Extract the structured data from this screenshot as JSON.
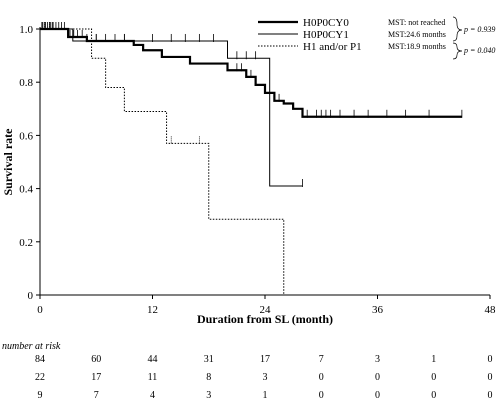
{
  "chart_data": {
    "type": "line",
    "title": "",
    "xlabel": "Duration from SL (month)",
    "ylabel": "Survival rate",
    "xlim": [
      0,
      48
    ],
    "ylim": [
      0,
      1.0
    ],
    "xticks": [
      0,
      12,
      24,
      36,
      48
    ],
    "yticks": [
      0,
      0.2,
      0.4,
      0.6,
      0.8,
      1.0
    ],
    "xtick_labels": [
      "0",
      "12",
      "24",
      "36",
      "48"
    ],
    "ytick_labels": [
      "0",
      "0.2",
      "0.4",
      "0.6",
      "0.8",
      "1.0"
    ],
    "grid": false,
    "legend_position": "top-right",
    "series": [
      {
        "name": "H0P0CY0",
        "style": "thick-solid",
        "steps": [
          [
            0,
            1.0
          ],
          [
            3,
            0.97
          ],
          [
            5,
            0.955
          ],
          [
            10,
            0.94
          ],
          [
            11,
            0.92
          ],
          [
            13,
            0.895
          ],
          [
            16,
            0.87
          ],
          [
            20,
            0.845
          ],
          [
            22,
            0.82
          ],
          [
            23,
            0.79
          ],
          [
            24,
            0.76
          ],
          [
            25,
            0.73
          ],
          [
            26,
            0.72
          ],
          [
            27,
            0.7
          ],
          [
            28,
            0.67
          ],
          [
            45,
            0.67
          ]
        ],
        "censored": [
          0.2,
          0.5,
          0.8,
          1.1,
          1.4,
          1.7,
          2.0,
          2.3,
          2.6,
          3.2,
          3.6,
          4.0,
          4.5,
          5.0,
          6.0,
          7.0,
          8.0,
          9.0,
          21.0,
          21.5,
          22.5,
          23.0,
          25.5,
          28.5,
          29.5,
          30.0,
          30.5,
          31.0,
          32.0,
          33.5,
          35.0,
          37.0,
          39.0,
          41.5,
          45.0
        ]
      },
      {
        "name": "H0P0CY1",
        "style": "thin-solid",
        "steps": [
          [
            0,
            1.0
          ],
          [
            3.5,
            0.955
          ],
          [
            20,
            0.89
          ],
          [
            24.5,
            0.41
          ],
          [
            28,
            0.41
          ]
        ],
        "censored": [
          0.3,
          0.6,
          1.0,
          1.3,
          6.0,
          9.0,
          12.0,
          14.0,
          15.5,
          17.0,
          18.5,
          21.0,
          22.0,
          23.0,
          28.0
        ]
      },
      {
        "name": "H1 and/or P1",
        "style": "dotted",
        "steps": [
          [
            0,
            1.0
          ],
          [
            5.5,
            0.89
          ],
          [
            7,
            0.78
          ],
          [
            9,
            0.69
          ],
          [
            13.5,
            0.57
          ],
          [
            18,
            0.285
          ],
          [
            26,
            0.0
          ]
        ],
        "censored": [
          0.5,
          1.0,
          14.0,
          17.0
        ]
      }
    ],
    "annotations": {
      "mst": [
        "MST: not reached",
        "MST:24.6 months",
        "MST:18.9 months"
      ],
      "p_values": [
        "p = 0.939",
        "p = 0.040"
      ]
    }
  },
  "risk_table": {
    "title": "number at risk",
    "time_points": [
      0,
      6,
      12,
      18,
      24,
      30,
      36,
      42,
      48
    ],
    "rows": [
      {
        "values": [
          "84",
          "60",
          "44",
          "31",
          "17",
          "7",
          "3",
          "1",
          "0"
        ]
      },
      {
        "values": [
          "22",
          "17",
          "11",
          "8",
          "3",
          "0",
          "0",
          "0",
          "0"
        ]
      },
      {
        "values": [
          "9",
          "7",
          "4",
          "3",
          "1",
          "0",
          "0",
          "0",
          "0"
        ]
      }
    ]
  }
}
